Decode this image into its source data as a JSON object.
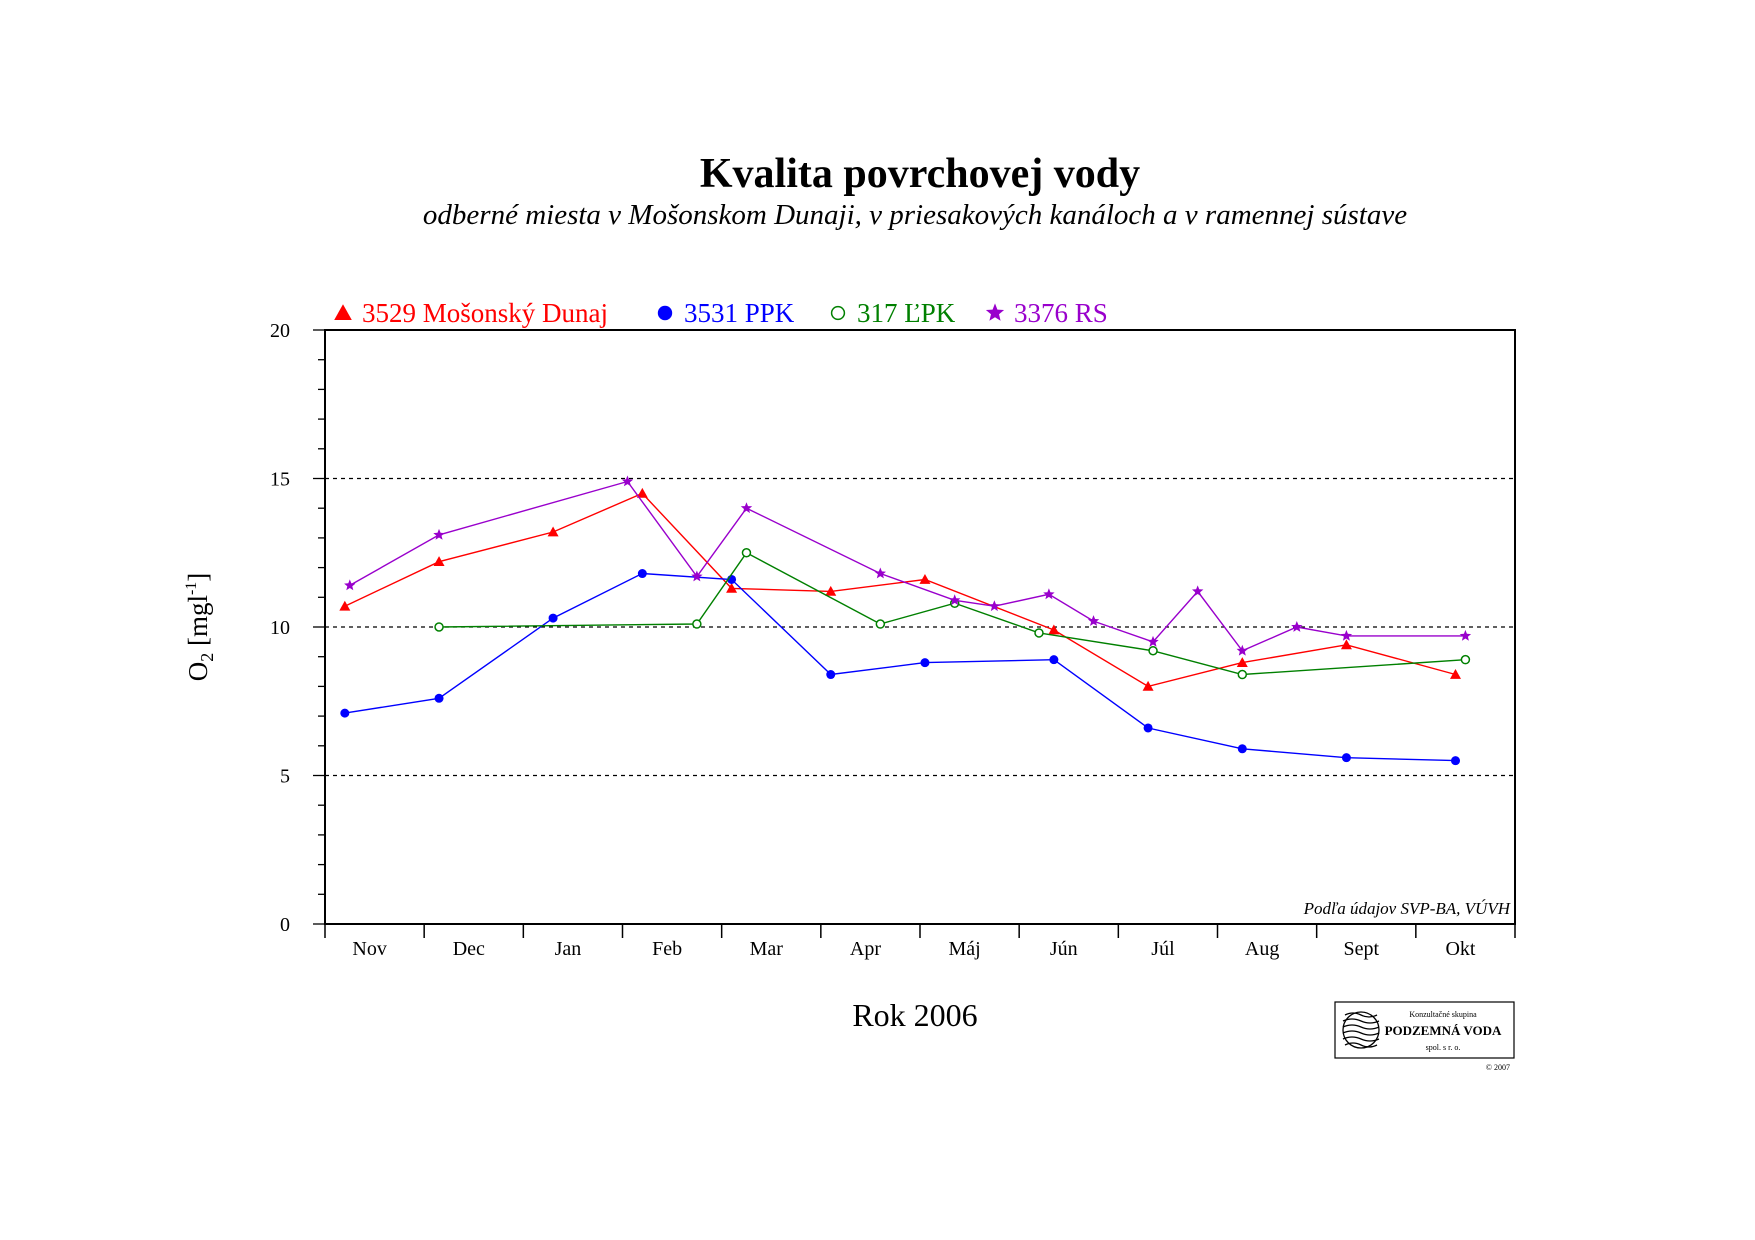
{
  "page": {
    "title": "Kvalita povrchovej vody",
    "subtitle": "odberné miesta v Mošonskom Dunaji, v priesakových kanáloch a v ramennej sústave",
    "source_note": "Podľa údajov SVP-BA, VÚVH",
    "logo": {
      "line1": "Konzultačné skupina",
      "line2": "PODZEMNÁ VODA",
      "line3": "spol. s r. o.",
      "copyright": "© 2007"
    }
  },
  "chart_data": {
    "type": "line",
    "title": "Kvalita povrchovej vody",
    "subtitle": "odberné miesta v Mošonskom Dunaji, v priesakových kanáloch a v ramennej sústave",
    "xlabel": "Rok 2006",
    "ylabel_main": "O",
    "ylabel_sub": "2",
    "ylabel_unit": " [mgl",
    "ylabel_sup": "-1",
    "ylabel_close": "]",
    "categories": [
      "Nov",
      "Dec",
      "Jan",
      "Feb",
      "Mar",
      "Apr",
      "Máj",
      "Jún",
      "Júl",
      "Aug",
      "Sept",
      "Okt"
    ],
    "xlim": [
      0,
      12
    ],
    "ylim": [
      0,
      20
    ],
    "yticks": [
      0,
      5,
      10,
      15,
      20
    ],
    "grid_dashed_at": [
      5,
      10,
      15
    ],
    "legend_position": "top-left",
    "series": [
      {
        "name": "3529 Mošonský Dunaj",
        "color": "#ff0000",
        "marker": "triangle-filled",
        "points": [
          [
            0.2,
            10.7
          ],
          [
            1.15,
            12.2
          ],
          [
            2.3,
            13.2
          ],
          [
            3.2,
            14.5
          ],
          [
            4.1,
            11.3
          ],
          [
            5.1,
            11.2
          ],
          [
            6.05,
            11.6
          ],
          [
            7.35,
            9.9
          ],
          [
            8.3,
            8.0
          ],
          [
            9.25,
            8.8
          ],
          [
            10.3,
            9.4
          ],
          [
            11.4,
            8.4
          ]
        ]
      },
      {
        "name": "3531 PPK",
        "color": "#0000ff",
        "marker": "circle-filled",
        "points": [
          [
            0.2,
            7.1
          ],
          [
            1.15,
            7.6
          ],
          [
            2.3,
            10.3
          ],
          [
            3.2,
            11.8
          ],
          [
            4.1,
            11.6
          ],
          [
            5.1,
            8.4
          ],
          [
            6.05,
            8.8
          ],
          [
            7.35,
            8.9
          ],
          [
            8.3,
            6.6
          ],
          [
            9.25,
            5.9
          ],
          [
            10.3,
            5.6
          ],
          [
            11.4,
            5.5
          ]
        ]
      },
      {
        "name": "317 ĽPK",
        "color": "#008000",
        "marker": "circle-open",
        "points": [
          [
            1.15,
            10.0
          ],
          [
            3.75,
            10.1
          ],
          [
            4.25,
            12.5
          ],
          [
            5.6,
            10.1
          ],
          [
            6.35,
            10.8
          ],
          [
            7.2,
            9.8
          ],
          [
            8.35,
            9.2
          ],
          [
            9.25,
            8.4
          ],
          [
            11.5,
            8.9
          ]
        ]
      },
      {
        "name": "3376 RS",
        "color": "#9900cc",
        "marker": "star",
        "points": [
          [
            0.25,
            11.4
          ],
          [
            1.15,
            13.1
          ],
          [
            3.05,
            14.9
          ],
          [
            3.75,
            11.7
          ],
          [
            4.25,
            14.0
          ],
          [
            5.6,
            11.8
          ],
          [
            6.35,
            10.9
          ],
          [
            6.75,
            10.7
          ],
          [
            7.3,
            11.1
          ],
          [
            7.75,
            10.2
          ],
          [
            8.35,
            9.5
          ],
          [
            8.8,
            11.2
          ],
          [
            9.25,
            9.2
          ],
          [
            9.8,
            10.0
          ],
          [
            10.3,
            9.7
          ],
          [
            11.5,
            9.7
          ]
        ]
      }
    ]
  }
}
